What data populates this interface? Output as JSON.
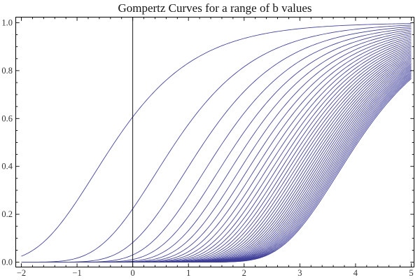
{
  "chart_data": {
    "type": "line",
    "title": "Gompertz Curves for a range of b values",
    "formula": "y(x) = exp(-b * exp(-x))",
    "b_values": [
      0.5,
      1.5,
      2.5,
      3.5,
      4.5,
      5.5,
      6.5,
      7.5,
      8.5,
      9.5,
      10.5,
      11.5,
      12.5,
      13.5,
      14.5,
      15.5,
      16.5,
      17.5,
      18.5,
      19.5,
      20.5,
      21.5,
      22.5,
      23.5,
      24.5,
      25.5,
      26.5,
      27.5,
      28.5,
      29.5,
      30.5,
      31.5,
      32.5,
      33.5,
      34.5,
      35.5,
      36.5,
      37.5,
      38.5,
      39.5
    ],
    "x_range": [
      -2,
      5
    ],
    "y_range": [
      0,
      1
    ],
    "x_major_ticks": [
      -2,
      -1,
      0,
      1,
      2,
      3,
      4,
      5
    ],
    "x_tick_labels": [
      "−2",
      "−1",
      "0",
      "1",
      "2",
      "3",
      "4",
      "5"
    ],
    "x_minor_step": 0.2,
    "y_major_ticks": [
      0,
      0.2,
      0.4,
      0.6,
      0.8,
      1.0
    ],
    "y_tick_labels": [
      "0.0",
      "0.2",
      "0.4",
      "0.6",
      "0.8",
      "1.0"
    ],
    "y_minor_step": 0.05,
    "axis_line_x": 0,
    "grid": false,
    "legend": "none",
    "curve_color": "#3d3d99",
    "frame_color": "#000000",
    "label_color": "#333333"
  }
}
